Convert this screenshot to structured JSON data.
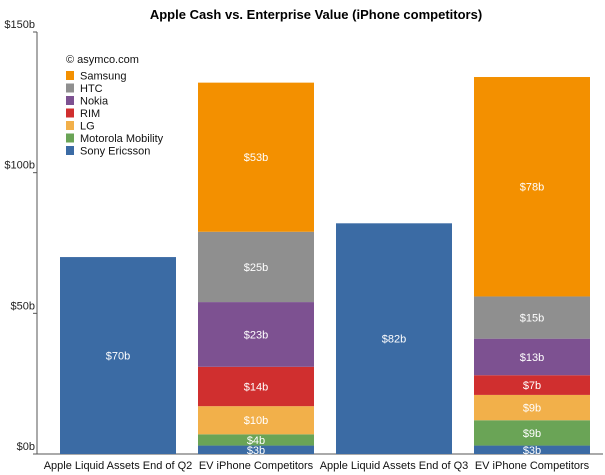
{
  "chart_data": {
    "type": "bar",
    "stacked": true,
    "title": "Apple Cash vs. Enterprise Value (iPhone competitors)",
    "annotation": "© asymco.com",
    "xlabel": "",
    "ylabel": "",
    "ylim": [
      0,
      150
    ],
    "y_ticks": [
      {
        "value": 0,
        "label": "$0b"
      },
      {
        "value": 50,
        "label": "$50b"
      },
      {
        "value": 100,
        "label": "$100b"
      },
      {
        "value": 150,
        "label": "$150b"
      }
    ],
    "grid": false,
    "legend_position": "top-left",
    "categories": [
      "Apple Liquid Assets End of Q2",
      "EV iPhone Competitors",
      "Apple Liquid Assets End of Q3",
      "EV iPhone Competitors"
    ],
    "series": [
      {
        "name": "Sony Ericsson",
        "color": "#3b6ba4",
        "values": [
          70,
          3,
          82,
          3
        ],
        "labels": [
          "$70b",
          "$3b",
          "$82b",
          "$3b"
        ]
      },
      {
        "name": "Motorola Mobility",
        "color": "#6aa456",
        "values": [
          0,
          4,
          0,
          9
        ],
        "labels": [
          "",
          "$4b",
          "",
          "$9b"
        ]
      },
      {
        "name": "LG",
        "color": "#f2b04a",
        "values": [
          0,
          10,
          0,
          9
        ],
        "labels": [
          "",
          "$10b",
          "",
          "$9b"
        ]
      },
      {
        "name": "RIM",
        "color": "#d02f2f",
        "values": [
          0,
          14,
          0,
          7
        ],
        "labels": [
          "",
          "$14b",
          "",
          "$7b"
        ]
      },
      {
        "name": "Nokia",
        "color": "#7d5191",
        "values": [
          0,
          23,
          0,
          13
        ],
        "labels": [
          "",
          "$23b",
          "",
          "$13b"
        ]
      },
      {
        "name": "HTC",
        "color": "#8f8f8f",
        "values": [
          0,
          25,
          0,
          15
        ],
        "labels": [
          "",
          "$25b",
          "",
          "$15b"
        ]
      },
      {
        "name": "Samsung",
        "color": "#f39000",
        "values": [
          0,
          53,
          0,
          78
        ],
        "labels": [
          "",
          "$53b",
          "",
          "$78b"
        ]
      }
    ],
    "legend_order": [
      "Samsung",
      "HTC",
      "Nokia",
      "RIM",
      "LG",
      "Motorola Mobility",
      "Sony Ericsson"
    ]
  }
}
